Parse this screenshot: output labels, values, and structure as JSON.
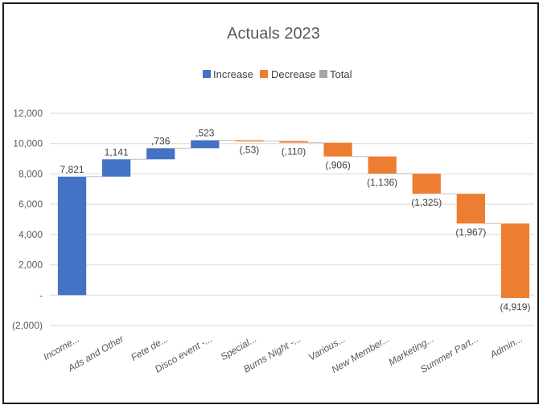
{
  "chart_data": {
    "type": "waterfall",
    "title": "Actuals 2023",
    "legend": [
      {
        "label": "Increase",
        "color": "#4472C4"
      },
      {
        "label": "Decrease",
        "color": "#ED7D31"
      },
      {
        "label": "Total",
        "color": "#A5A5A5"
      }
    ],
    "legend_position": "top",
    "grid": true,
    "ylim": [
      -2000,
      12000
    ],
    "yticks": [
      12000,
      10000,
      8000,
      6000,
      4000,
      2000,
      0,
      -2000
    ],
    "ytick_labels": [
      "12,000",
      "10,000",
      "8,000",
      "6,000",
      "4,000",
      "2,000",
      "-",
      "(2,000)"
    ],
    "categories": [
      "Income...",
      "Ads and Other",
      "Fete de...",
      "Disco event -...",
      "Special...",
      "Burns Night -...",
      "Various...",
      "New Member...",
      "Marketing...",
      "Summer Part...",
      "Admin..."
    ],
    "values": [
      7821,
      1141,
      736,
      523,
      -53,
      -110,
      -906,
      -1136,
      -1325,
      -1967,
      -4919
    ],
    "labels": [
      "7,821",
      "1,141",
      ",736",
      ",523",
      "(,53)",
      "(,110)",
      "(,906)",
      "(1,136)",
      "(1,325)",
      "(1,967)",
      "(4,919)"
    ]
  }
}
